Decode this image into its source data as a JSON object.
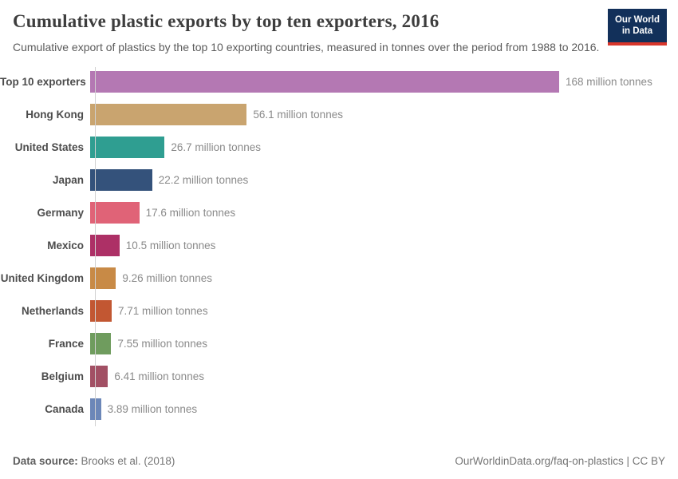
{
  "header": {
    "title": "Cumulative plastic exports by top ten exporters, 2016",
    "subtitle": "Cumulative export of plastics by the top 10 exporting countries, measured in tonnes over the period from 1988 to 2016.",
    "logo": {
      "line1": "Our World",
      "line2": "in Data",
      "bg_color": "#12305a",
      "stripe_color": "#d8362b"
    }
  },
  "chart_data": {
    "type": "bar",
    "orientation": "horizontal",
    "title": "Cumulative plastic exports by top ten exporters, 2016",
    "unit": "million tonnes",
    "xlim": [
      0,
      168
    ],
    "grid": false,
    "legend": "none",
    "categories": [
      "Top 10 exporters",
      "Hong Kong",
      "United States",
      "Japan",
      "Germany",
      "Mexico",
      "United Kingdom",
      "Netherlands",
      "France",
      "Belgium",
      "Canada"
    ],
    "values": [
      168,
      56.1,
      26.7,
      22.2,
      17.6,
      10.5,
      9.26,
      7.71,
      7.55,
      6.41,
      3.89
    ],
    "value_labels": [
      "168 million tonnes",
      "56.1 million tonnes",
      "26.7 million tonnes",
      "22.2 million tonnes",
      "17.6 million tonnes",
      "10.5 million tonnes",
      "9.26 million tonnes",
      "7.71 million tonnes",
      "7.55 million tonnes",
      "6.41 million tonnes",
      "3.89 million tonnes"
    ],
    "colors": [
      "#b478b3",
      "#c9a46f",
      "#2f9e91",
      "#34527b",
      "#e06377",
      "#ad3066",
      "#c88a46",
      "#c25732",
      "#6f9c5e",
      "#a25064",
      "#6c87b8"
    ]
  },
  "footer": {
    "data_source_label": "Data source:",
    "data_source_value": "Brooks et al. (2018)",
    "attribution": "OurWorldinData.org/faq-on-plastics | CC BY"
  }
}
